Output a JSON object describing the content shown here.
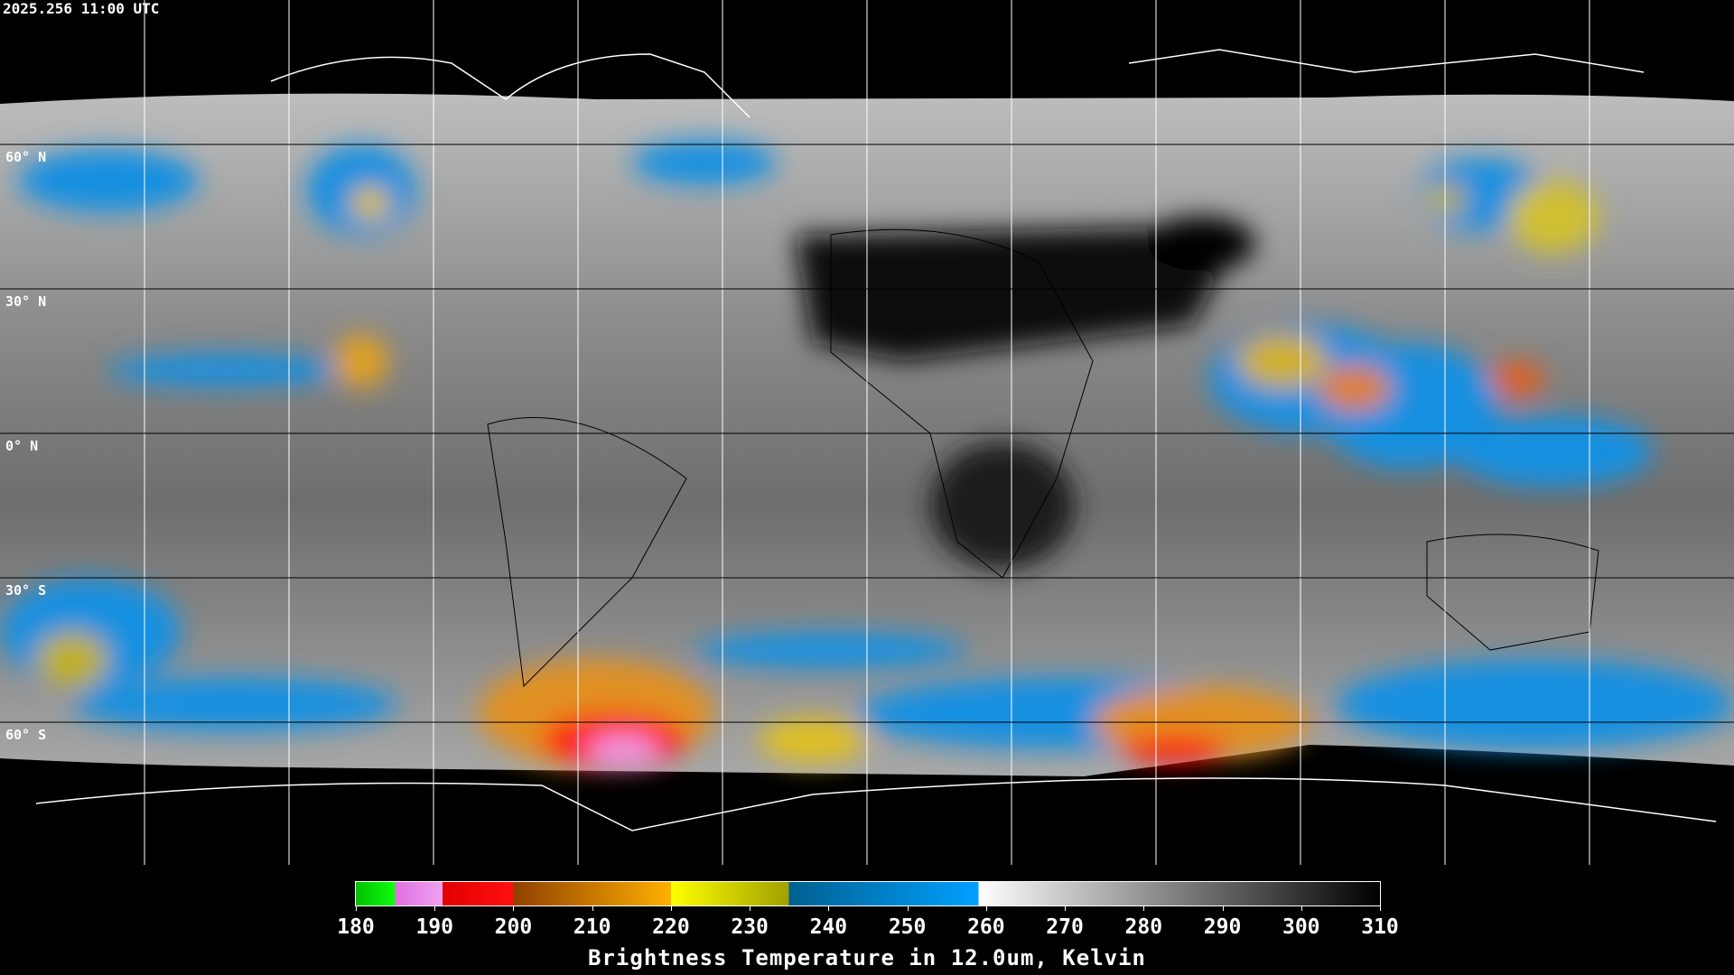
{
  "header": {
    "timestamp": "2025.256 11:00 UTC"
  },
  "map": {
    "lat_labels": [
      "60° N",
      "30° N",
      "0° N",
      "30° S",
      "60° S"
    ]
  },
  "colorbar": {
    "ticks": [
      180,
      190,
      200,
      210,
      220,
      230,
      240,
      250,
      260,
      270,
      280,
      290,
      300,
      310
    ],
    "label": "Brightness Temperature in 12.0um, Kelvin"
  }
}
